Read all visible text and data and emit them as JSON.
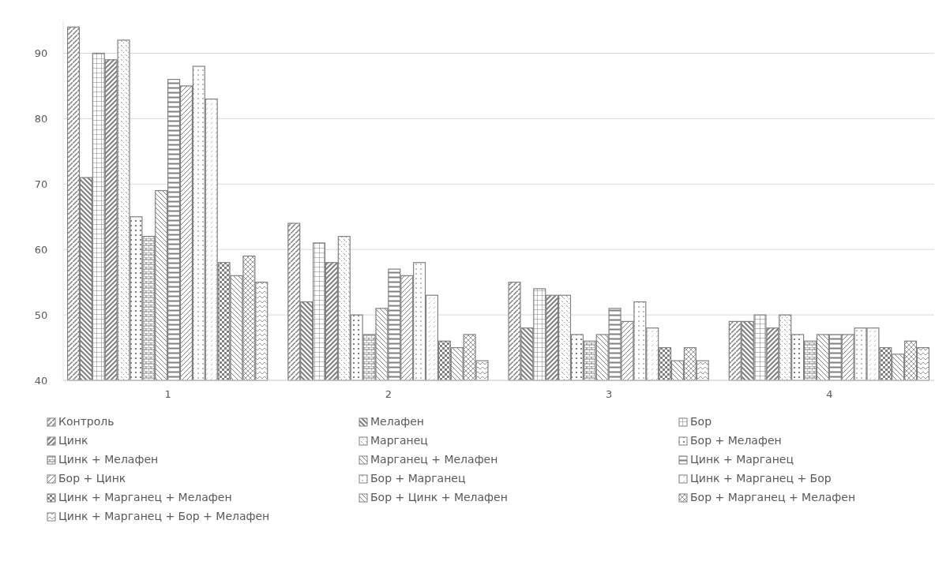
{
  "chart_data": {
    "type": "bar",
    "categories": [
      "1",
      "2",
      "3",
      "4"
    ],
    "ylim": [
      40,
      95
    ],
    "yticks": [
      40,
      50,
      60,
      70,
      80,
      90
    ],
    "grid": "y",
    "legend": "bottom",
    "series": [
      {
        "name": "Контроль",
        "color": "#808080",
        "values": [
          94,
          64,
          55,
          49
        ]
      },
      {
        "name": "Мелафен",
        "color": "#808080",
        "values": [
          71,
          52,
          48,
          49
        ]
      },
      {
        "name": "Бор",
        "color": "#808080",
        "values": [
          90,
          61,
          54,
          50
        ]
      },
      {
        "name": "Цинк",
        "color": "#808080",
        "values": [
          89,
          58,
          53,
          48
        ]
      },
      {
        "name": "Марганец",
        "color": "#808080",
        "values": [
          92,
          62,
          53,
          50
        ]
      },
      {
        "name": "Бор + Мелафен",
        "color": "#808080",
        "values": [
          65,
          50,
          47,
          47
        ]
      },
      {
        "name": "Цинк + Мелафен",
        "color": "#808080",
        "values": [
          62,
          47,
          46,
          46
        ]
      },
      {
        "name": "Марганец + Мелафен",
        "color": "#808080",
        "values": [
          69,
          51,
          47,
          47
        ]
      },
      {
        "name": "Цинк + Марганец",
        "color": "#808080",
        "values": [
          86,
          57,
          51,
          47
        ]
      },
      {
        "name": "Бор + Цинк",
        "color": "#808080",
        "values": [
          85,
          56,
          49,
          47
        ]
      },
      {
        "name": "Бор + Марганец",
        "color": "#808080",
        "values": [
          88,
          58,
          52,
          48
        ]
      },
      {
        "name": "Цинк + Марганец + Бор",
        "color": "#808080",
        "values": [
          83,
          53,
          48,
          48
        ]
      },
      {
        "name": "Цинк + Марганец + Мелафен",
        "color": "#808080",
        "values": [
          58,
          46,
          45,
          45
        ]
      },
      {
        "name": "Бор + Цинк + Мелафен",
        "color": "#808080",
        "values": [
          56,
          45,
          43,
          44
        ]
      },
      {
        "name": "Бор + Марганец + Мелафен",
        "color": "#808080",
        "values": [
          59,
          47,
          45,
          46
        ]
      },
      {
        "name": "Цинк + Марганец + Бор + Мелафен",
        "color": "#808080",
        "values": [
          55,
          43,
          43,
          45
        ]
      }
    ]
  }
}
